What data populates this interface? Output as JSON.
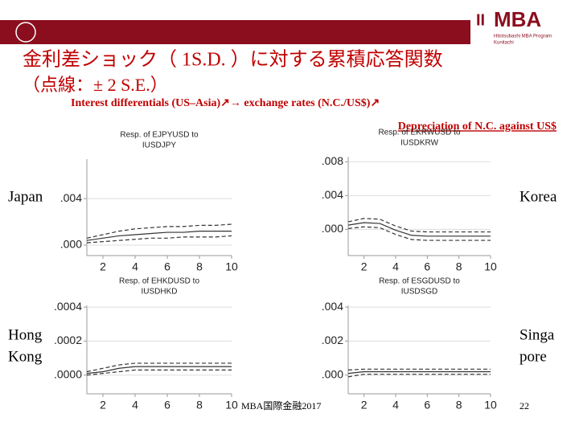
{
  "slide": {
    "title": "金利差ショック（ 1S.D. ）に対する累積応答関数",
    "subtitle": "（点線：± 2 S.E.）",
    "annotation": "Interest differentials (US–Asia)↗→ exchange rates (N.C./US$)↗",
    "annotation2": "Depreciation of N.C. against US$",
    "logo": "MBA",
    "logo_sub1": "Hitotsubashi MBA Program",
    "logo_sub2": "Kunitachi",
    "labels": [
      "Japan",
      "Korea",
      "Hong",
      "Kong",
      "Singa",
      "pore"
    ],
    "footer": "MBA国際金融2017",
    "page": "22"
  },
  "chart_data": [
    {
      "type": "line",
      "title": [
        "Resp. of EJPYUSD to",
        "IUSDJPY"
      ],
      "x": [
        1,
        2,
        3,
        4,
        5,
        6,
        7,
        8,
        9,
        10
      ],
      "xlim": [
        1,
        10
      ],
      "xticks": [
        2,
        4,
        6,
        8,
        10
      ],
      "ylim": [
        -0.0009,
        0.0074
      ],
      "yticks": [
        {
          "value": 0,
          "label": ".000"
        },
        {
          "value": 0.004,
          "label": ".004"
        }
      ],
      "series": [
        {
          "color": "#333333",
          "style": "solid",
          "values": [
            0.0004,
            0.0006,
            0.0008,
            0.0009,
            0.001,
            0.0011,
            0.0011,
            0.0012,
            0.0012,
            0.0012
          ]
        },
        {
          "color": "#333333",
          "style": "dashed",
          "values": [
            0.0006,
            0.0009,
            0.0012,
            0.0014,
            0.0015,
            0.0016,
            0.0016,
            0.0017,
            0.0017,
            0.0018
          ]
        },
        {
          "color": "#333333",
          "style": "dashed",
          "values": [
            0.0002,
            0.0003,
            0.0004,
            0.0005,
            0.0006,
            0.0006,
            0.0007,
            0.0007,
            0.0007,
            0.0008
          ]
        }
      ]
    },
    {
      "type": "line",
      "title": [
        "Resp. of EKRWUSD to",
        "IUSDKRW"
      ],
      "x": [
        1,
        2,
        3,
        4,
        5,
        6,
        7,
        8,
        9,
        10
      ],
      "xlim": [
        1,
        10
      ],
      "xticks": [
        2,
        4,
        6,
        8,
        10
      ],
      "ylim": [
        -0.0031,
        0.0086
      ],
      "yticks": [
        {
          "value": 0,
          "label": ".000"
        },
        {
          "value": 0.004,
          "label": ".004"
        },
        {
          "value": 0.008,
          "label": ".008"
        }
      ],
      "series": [
        {
          "color": "#333333",
          "style": "solid",
          "values": [
            0.0005,
            0.0008,
            0.0007,
            -0.0001,
            -0.0007,
            -0.0008,
            -0.0008,
            -0.0008,
            -0.0008,
            -0.0008
          ]
        },
        {
          "color": "#333333",
          "style": "dashed",
          "values": [
            0.0009,
            0.0013,
            0.0012,
            0.0004,
            -0.0002,
            -0.0003,
            -0.0003,
            -0.0003,
            -0.0003,
            -0.0003
          ]
        },
        {
          "color": "#333333",
          "style": "dashed",
          "values": [
            0.0001,
            0.0003,
            0.0002,
            -0.0006,
            -0.0012,
            -0.0013,
            -0.0013,
            -0.0013,
            -0.0013,
            -0.0013
          ]
        }
      ]
    },
    {
      "type": "line",
      "title": [
        "Resp. of EHKDUSD to",
        "IUSDHKD"
      ],
      "x": [
        1,
        2,
        3,
        4,
        5,
        6,
        7,
        8,
        9,
        10
      ],
      "xlim": [
        1,
        10
      ],
      "xticks": [
        2,
        4,
        6,
        8,
        10
      ],
      "ylim": [
        -0.00011,
        0.00041
      ],
      "yticks": [
        {
          "value": 0,
          "label": ".0000"
        },
        {
          "value": 0.0002,
          "label": ".0002"
        },
        {
          "value": 0.0004,
          "label": ".0004"
        }
      ],
      "series": [
        {
          "color": "#333333",
          "style": "solid",
          "values": [
            1e-05,
            2e-05,
            4e-05,
            5e-05,
            5e-05,
            5e-05,
            5e-05,
            5e-05,
            5e-05,
            5e-05
          ]
        },
        {
          "color": "#333333",
          "style": "dashed",
          "values": [
            2e-05,
            4e-05,
            6e-05,
            7e-05,
            7e-05,
            7e-05,
            7e-05,
            7e-05,
            7e-05,
            7e-05
          ]
        },
        {
          "color": "#333333",
          "style": "dashed",
          "values": [
            0,
            1e-05,
            2e-05,
            3e-05,
            3e-05,
            3e-05,
            3e-05,
            3e-05,
            3e-05,
            3e-05
          ]
        }
      ]
    },
    {
      "type": "line",
      "title": [
        "Resp. of ESGDUSD to",
        "IUSDSGD"
      ],
      "x": [
        1,
        2,
        3,
        4,
        5,
        6,
        7,
        8,
        9,
        10
      ],
      "xlim": [
        1,
        10
      ],
      "xticks": [
        2,
        4,
        6,
        8,
        10
      ],
      "ylim": [
        -0.0011,
        0.0041
      ],
      "yticks": [
        {
          "value": 0,
          "label": ".000"
        },
        {
          "value": 0.002,
          "label": ".002"
        },
        {
          "value": 0.004,
          "label": ".004"
        }
      ],
      "series": [
        {
          "color": "#333333",
          "style": "solid",
          "values": [
            0.0001,
            0.0002,
            0.0002,
            0.0002,
            0.0002,
            0.0002,
            0.0002,
            0.0002,
            0.0002,
            0.0002
          ]
        },
        {
          "color": "#333333",
          "style": "dashed",
          "values": [
            0.0003,
            0.00035,
            0.00035,
            0.00035,
            0.00035,
            0.00035,
            0.00035,
            0.00035,
            0.00035,
            0.00035
          ]
        },
        {
          "color": "#333333",
          "style": "dashed",
          "values": [
            -0.0001,
            5e-05,
            5e-05,
            5e-05,
            5e-05,
            5e-05,
            5e-05,
            5e-05,
            5e-05,
            5e-05
          ]
        }
      ]
    }
  ]
}
